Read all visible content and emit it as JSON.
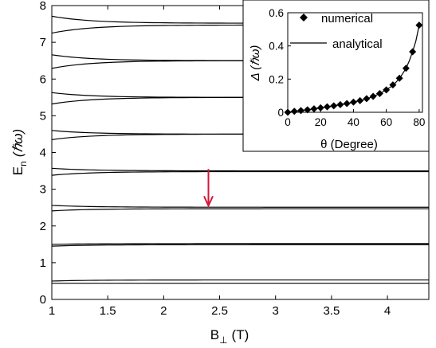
{
  "chart_data": [
    {
      "type": "line",
      "xlabel": "B",
      "xlabel_sub": "⊥",
      "xlabel_unit": "(T)",
      "ylabel": "E",
      "ylabel_sub": "n",
      "ylabel_unit": "(ℏω)",
      "xlim": [
        1,
        4.37
      ],
      "ylim": [
        0,
        8
      ],
      "xticks": [
        "1",
        "1.5",
        "2",
        "2.5",
        "3",
        "3.5",
        "4"
      ],
      "xtick_values": [
        1,
        1.5,
        2,
        2.5,
        3,
        3.5,
        4
      ],
      "yticks": [
        "0",
        "1",
        "2",
        "3",
        "4",
        "5",
        "6",
        "7",
        "8"
      ],
      "ytick_values": [
        0,
        1,
        2,
        3,
        4,
        5,
        6,
        7,
        8
      ],
      "levels": [
        {
          "y_start": 0.5,
          "y_end": 0.53
        },
        {
          "y_start": 0.44,
          "y_end": 0.44
        },
        {
          "y_start": 1.5,
          "y_end": 1.52
        },
        {
          "y_start": 1.45,
          "y_end": 1.49
        },
        {
          "y_start": 2.56,
          "y_end": 2.51
        },
        {
          "y_start": 2.41,
          "y_end": 2.47
        },
        {
          "y_start": 3.57,
          "y_end": 3.5
        },
        {
          "y_start": 3.38,
          "y_end": 3.48
        },
        {
          "y_start": 4.6,
          "y_end": 4.5
        },
        {
          "y_start": 4.35,
          "y_end": 4.5
        },
        {
          "y_start": 5.63,
          "y_end": 5.5
        },
        {
          "y_start": 5.32,
          "y_end": 5.5
        },
        {
          "y_start": 6.66,
          "y_end": 6.5
        },
        {
          "y_start": 6.29,
          "y_end": 6.5
        },
        {
          "y_start": 7.71,
          "y_end": 7.52
        },
        {
          "y_start": 7.25,
          "y_end": 7.47
        }
      ],
      "annotation": {
        "type": "arrow",
        "x": 2.4,
        "y_from": 3.55,
        "y_to": 2.55,
        "color": "#d4163c"
      }
    },
    {
      "type": "line",
      "role": "inset",
      "xlabel": "θ (Degree)",
      "ylabel": "Δ (ℏω)",
      "xlim": [
        0,
        82
      ],
      "ylim": [
        0,
        0.6
      ],
      "xticks": [
        "0",
        "20",
        "40",
        "60",
        "80"
      ],
      "xtick_values": [
        0,
        20,
        40,
        60,
        80
      ],
      "yticks": [
        "0",
        "0.2",
        "0.4",
        "0.6"
      ],
      "ytick_values": [
        0,
        0.2,
        0.4,
        0.6
      ],
      "legend_position": "top-right",
      "series": [
        {
          "name": "numerical",
          "marker": "diamond",
          "x": [
            0,
            4,
            8,
            12,
            16,
            20,
            24,
            28,
            32,
            36,
            40,
            44,
            48,
            52,
            56,
            60,
            64,
            68,
            72,
            76,
            80
          ],
          "y": [
            0.0,
            0.006,
            0.01,
            0.015,
            0.021,
            0.027,
            0.033,
            0.039,
            0.046,
            0.053,
            0.061,
            0.07,
            0.082,
            0.096,
            0.113,
            0.135,
            0.165,
            0.205,
            0.265,
            0.365,
            0.525
          ]
        },
        {
          "name": "analytical",
          "marker": "none",
          "x": [
            0,
            5,
            10,
            15,
            20,
            25,
            30,
            35,
            40,
            45,
            50,
            55,
            60,
            63,
            66,
            69,
            72,
            74,
            76,
            78,
            80
          ],
          "y": [
            0.0,
            0.007,
            0.013,
            0.019,
            0.027,
            0.034,
            0.042,
            0.051,
            0.061,
            0.073,
            0.088,
            0.108,
            0.135,
            0.155,
            0.182,
            0.218,
            0.265,
            0.31,
            0.365,
            0.43,
            0.525
          ]
        }
      ]
    }
  ]
}
